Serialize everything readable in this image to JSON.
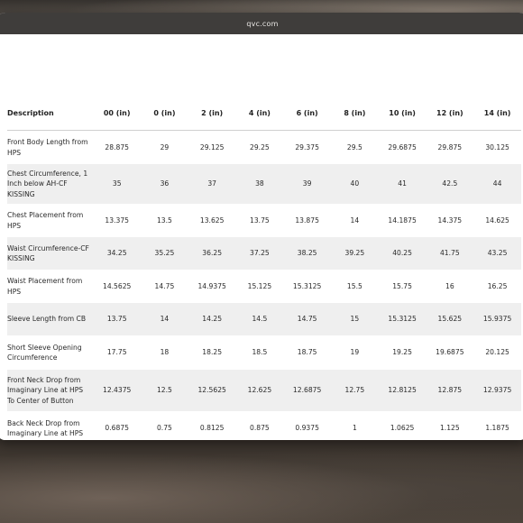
{
  "browser": {
    "url": "qvc.com"
  },
  "table": {
    "headers": [
      "Description",
      "00 (in)",
      "0 (in)",
      "2 (in)",
      "4 (in)",
      "6 (in)",
      "8 (in)",
      "10 (in)",
      "12 (in)",
      "14 (in)"
    ],
    "rows": [
      [
        "Front Body Length from HPS",
        "28.875",
        "29",
        "29.125",
        "29.25",
        "29.375",
        "29.5",
        "29.6875",
        "29.875",
        "30.125"
      ],
      [
        "Chest Circumference, 1 Inch below AH-CF KISSING",
        "35",
        "36",
        "37",
        "38",
        "39",
        "40",
        "41",
        "42.5",
        "44"
      ],
      [
        "Chest Placement from HPS",
        "13.375",
        "13.5",
        "13.625",
        "13.75",
        "13.875",
        "14",
        "14.1875",
        "14.375",
        "14.625"
      ],
      [
        "Waist Circumference-CF KISSING",
        "34.25",
        "35.25",
        "36.25",
        "37.25",
        "38.25",
        "39.25",
        "40.25",
        "41.75",
        "43.25"
      ],
      [
        "Waist Placement from HPS",
        "14.5625",
        "14.75",
        "14.9375",
        "15.125",
        "15.3125",
        "15.5",
        "15.75",
        "16",
        "16.25"
      ],
      [
        "Sleeve Length from CB",
        "13.75",
        "14",
        "14.25",
        "14.5",
        "14.75",
        "15",
        "15.3125",
        "15.625",
        "15.9375"
      ],
      [
        "Short Sleeve Opening Circumference",
        "17.75",
        "18",
        "18.25",
        "18.5",
        "18.75",
        "19",
        "19.25",
        "19.6875",
        "20.125"
      ],
      [
        "Front Neck Drop from Imaginary Line at HPS To Center of Button",
        "12.4375",
        "12.5",
        "12.5625",
        "12.625",
        "12.6875",
        "12.75",
        "12.8125",
        "12.875",
        "12.9375"
      ],
      [
        "Back Neck Drop from Imaginary Line at HPS",
        "0.6875",
        "0.75",
        "0.8125",
        "0.875",
        "0.9375",
        "1",
        "1.0625",
        "1.125",
        "1.1875"
      ]
    ]
  }
}
